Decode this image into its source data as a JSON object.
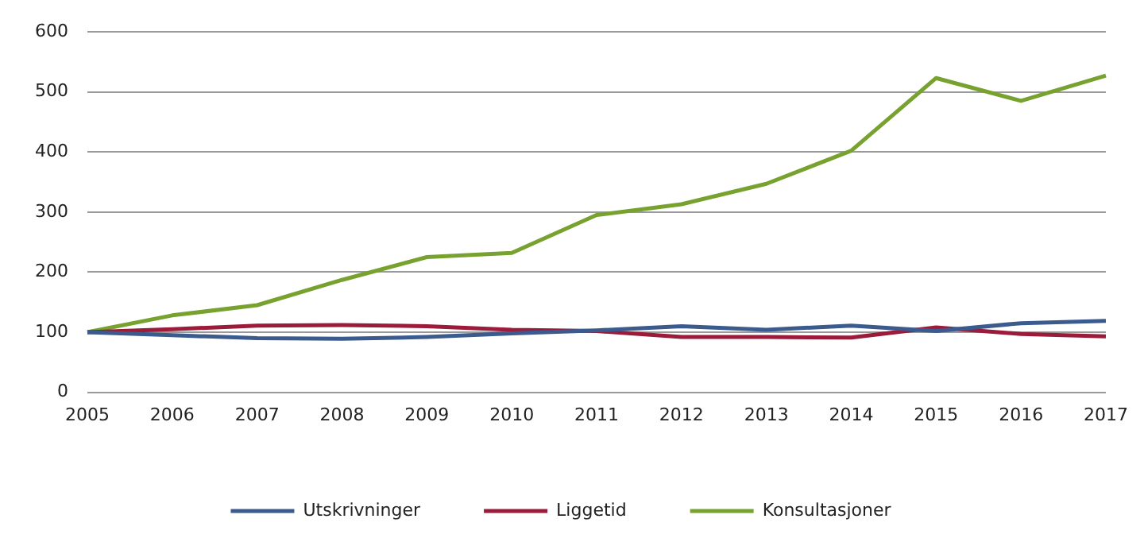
{
  "chart_data": {
    "type": "line",
    "categories": [
      "2005",
      "2006",
      "2007",
      "2008",
      "2009",
      "2010",
      "2011",
      "2012",
      "2013",
      "2014",
      "2015",
      "2016",
      "2017"
    ],
    "series": [
      {
        "name": "Utskrivninger",
        "color": "#3b5a8e",
        "values": [
          100,
          95,
          90,
          89,
          92,
          98,
          103,
          110,
          104,
          111,
          102,
          115,
          119
        ]
      },
      {
        "name": "Liggetid",
        "color": "#9b1b3a",
        "values": [
          100,
          105,
          111,
          112,
          110,
          104,
          102,
          92,
          92,
          91,
          108,
          97,
          93
        ]
      },
      {
        "name": "Konsultasjoner",
        "color": "#78a22f",
        "values": [
          100,
          128,
          145,
          187,
          225,
          232,
          295,
          313,
          347,
          402,
          523,
          485,
          527
        ]
      }
    ],
    "ylim": [
      0,
      600
    ],
    "yticks": [
      0,
      100,
      200,
      300,
      400,
      500,
      600
    ],
    "grid": "y",
    "legend": "bottom",
    "marker": "none"
  }
}
